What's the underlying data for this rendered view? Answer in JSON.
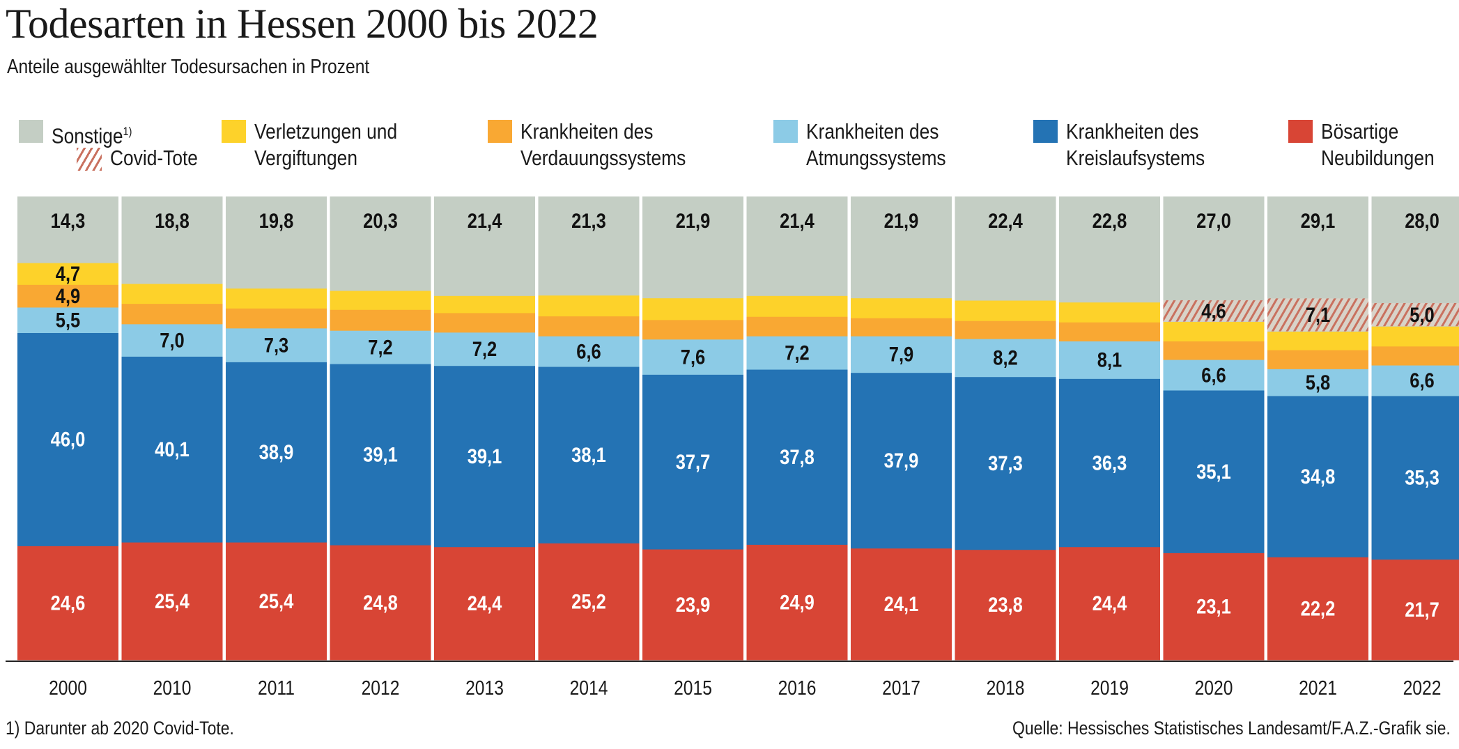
{
  "title": "Todesarten in Hessen 2000 bis 2022",
  "subtitle": "Anteile ausgewählter Todesursachen in Prozent",
  "footnote": "1) Darunter ab 2020 Covid-Tote.",
  "source": "Quelle: Hessisches Statistisches Landesamt/F.A.Z.-Grafik sie.",
  "legend": {
    "sonstige": {
      "label": "Sonstige",
      "sup": "1)",
      "color": "#c4cec4"
    },
    "covid": {
      "label": "Covid-Tote",
      "color": "#c9715f"
    },
    "verletzungen": {
      "line1": "Verletzungen und",
      "line2": "Vergiftungen",
      "color": "#fdd22a"
    },
    "verdauung": {
      "line1": "Krankheiten des",
      "line2": "Verdauungssystems",
      "color": "#f9a833"
    },
    "atmung": {
      "line1": "Krankheiten des",
      "line2": "Atmungssystems",
      "color": "#8ccbe6"
    },
    "kreislauf": {
      "line1": "Krankheiten des",
      "line2": "Kreislaufsystems",
      "color": "#2473b4"
    },
    "neubildungen": {
      "line1": "Bösartige",
      "line2": "Neubildungen",
      "color": "#d84535"
    }
  },
  "chart_data": {
    "type": "bar",
    "stacked": true,
    "title": "Todesarten in Hessen 2000 bis 2022",
    "ylabel": "Prozent",
    "ylim": [
      0,
      100
    ],
    "categories": [
      "2000",
      "2010",
      "2011",
      "2012",
      "2013",
      "2014",
      "2015",
      "2016",
      "2017",
      "2018",
      "2019",
      "2020",
      "2021",
      "2022"
    ],
    "series": [
      {
        "name": "Bösartige Neubildungen",
        "color": "#d84535",
        "labelColor": "#ffffff",
        "labeled": true,
        "values": [
          24.6,
          25.4,
          25.4,
          24.8,
          24.4,
          25.2,
          23.9,
          24.9,
          24.1,
          23.8,
          24.4,
          23.1,
          22.2,
          21.7
        ],
        "labels": [
          "24,6",
          "25,4",
          "25,4",
          "24,8",
          "24,4",
          "25,2",
          "23,9",
          "24,9",
          "24,1",
          "23,8",
          "24,4",
          "23,1",
          "22,2",
          "21,7"
        ]
      },
      {
        "name": "Krankheiten des Kreislaufsystems",
        "color": "#2473b4",
        "labelColor": "#ffffff",
        "labeled": true,
        "values": [
          46.0,
          40.1,
          38.9,
          39.1,
          39.1,
          38.1,
          37.7,
          37.8,
          37.9,
          37.3,
          36.3,
          35.1,
          34.8,
          35.3
        ],
        "labels": [
          "46,0",
          "40,1",
          "38,9",
          "39,1",
          "39,1",
          "38,1",
          "37,7",
          "37,8",
          "37,9",
          "37,3",
          "36,3",
          "35,1",
          "34,8",
          "35,3"
        ]
      },
      {
        "name": "Krankheiten des Atmungssystems",
        "color": "#8ccbe6",
        "labelColor": "#111111",
        "labeled": true,
        "values": [
          5.5,
          7.0,
          7.3,
          7.2,
          7.2,
          6.6,
          7.6,
          7.2,
          7.9,
          8.2,
          8.1,
          6.6,
          5.8,
          6.6
        ],
        "labels": [
          "5,5",
          "7,0",
          "7,3",
          "7,2",
          "7,2",
          "6,6",
          "7,6",
          "7,2",
          "7,9",
          "8,2",
          "8,1",
          "6,6",
          "5,8",
          "6,6"
        ]
      },
      {
        "name": "Krankheiten des Verdauungssystems",
        "color": "#f9a833",
        "labelColor": "#111111",
        "values": [
          4.9,
          4.4,
          4.3,
          4.5,
          4.2,
          4.3,
          4.2,
          4.2,
          3.9,
          3.9,
          4.1,
          4.0,
          4.1,
          4.1
        ],
        "labels": [
          "4,9",
          null,
          null,
          null,
          null,
          null,
          null,
          null,
          null,
          null,
          null,
          null,
          null,
          null
        ]
      },
      {
        "name": "Verletzungen und Vergiftungen",
        "color": "#fdd22a",
        "labelColor": "#111111",
        "values": [
          4.7,
          4.3,
          4.3,
          4.1,
          3.7,
          4.5,
          4.7,
          4.5,
          4.3,
          4.4,
          4.3,
          4.2,
          4.0,
          4.3
        ],
        "labels": [
          "4,7",
          null,
          null,
          null,
          null,
          null,
          null,
          null,
          null,
          null,
          null,
          null,
          null,
          null
        ]
      },
      {
        "name": "Sonstige",
        "color": "#c4cec4",
        "labelColor": "#111111",
        "labeled": true,
        "values": [
          14.3,
          18.8,
          19.8,
          20.3,
          21.4,
          21.3,
          21.9,
          21.4,
          21.9,
          22.4,
          22.8,
          27.0,
          29.1,
          28.0
        ],
        "labels": [
          "14,3",
          "18,8",
          "19,8",
          "20,3",
          "21,4",
          "21,3",
          "21,9",
          "21,4",
          "21,9",
          "22,4",
          "22,8",
          "27,0",
          "29,1",
          "28,0"
        ]
      }
    ],
    "covid_within_sonstige": {
      "name": "Covid-Tote",
      "color": "#c9715f",
      "values": [
        null,
        null,
        null,
        null,
        null,
        null,
        null,
        null,
        null,
        null,
        null,
        4.6,
        7.1,
        5.0
      ],
      "labels": [
        null,
        null,
        null,
        null,
        null,
        null,
        null,
        null,
        null,
        null,
        null,
        "4,6",
        "7,1",
        "5,0"
      ]
    }
  }
}
